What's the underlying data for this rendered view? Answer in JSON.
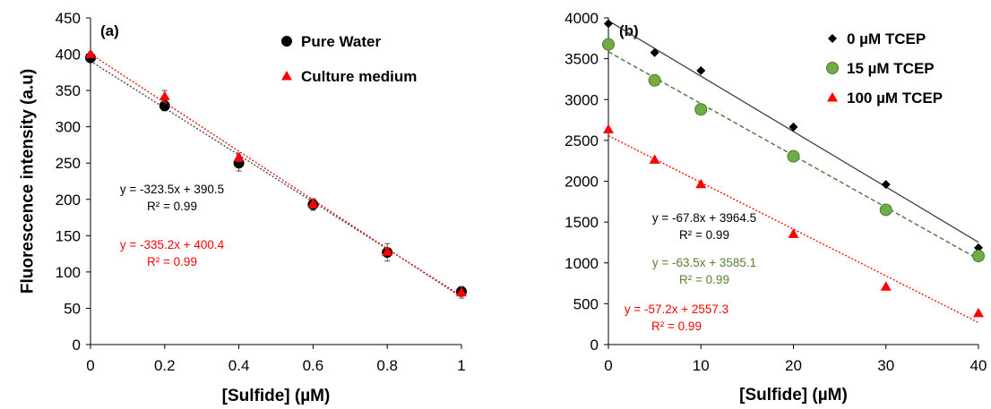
{
  "chart_data": [
    {
      "type": "scatter",
      "panel_label": "(a)",
      "xlabel": "[Sulfide] (µM)",
      "ylabel": "Fluorescence intensity (a.u)",
      "xlim": [
        0,
        1
      ],
      "ylim": [
        0,
        450
      ],
      "x_ticks": [
        "0",
        "0.2",
        "0.4",
        "0.6",
        "0.8",
        "1"
      ],
      "y_ticks": [
        "0",
        "50",
        "100",
        "150",
        "200",
        "250",
        "300",
        "350",
        "400",
        "450"
      ],
      "grid": false,
      "legend_position": "top-right",
      "series": [
        {
          "name": "Pure Water",
          "marker": "circle",
          "color": "#000000",
          "x": [
            0,
            0.2,
            0.4,
            0.6,
            0.8,
            1
          ],
          "y": [
            395,
            329,
            250,
            193,
            127,
            73
          ],
          "yerr": [
            5,
            7,
            11,
            8,
            12,
            6
          ],
          "fit": {
            "slope": -323.5,
            "intercept": 390.5,
            "style": "dotted",
            "color": "#404040"
          },
          "equation": "y = -323.5x + 390.5",
          "r2": "R² = 0.99"
        },
        {
          "name": "Culture medium",
          "marker": "triangle",
          "color": "#ff0000",
          "x": [
            0,
            0.2,
            0.4,
            0.6,
            0.8,
            1
          ],
          "y": [
            400,
            342,
            258,
            194,
            128,
            72
          ],
          "yerr": [
            3,
            8,
            6,
            6,
            5,
            8
          ],
          "fit": {
            "slope": -335.2,
            "intercept": 400.4,
            "style": "dotted",
            "color": "#ff0000"
          },
          "equation": "y = -335.2x + 400.4",
          "r2": "R² = 0.99"
        }
      ]
    },
    {
      "type": "scatter",
      "panel_label": "(b)",
      "xlabel": "[Sulfide] (µM)",
      "ylabel": "",
      "xlim": [
        0,
        40
      ],
      "ylim": [
        0,
        4000
      ],
      "x_ticks": [
        "0",
        "10",
        "20",
        "30",
        "40"
      ],
      "y_ticks": [
        "0",
        "500",
        "1000",
        "1500",
        "2000",
        "2500",
        "3000",
        "3500",
        "4000"
      ],
      "grid": false,
      "legend_position": "top-right",
      "series": [
        {
          "name": "0 µM TCEP",
          "marker": "diamond",
          "color": "#000000",
          "x": [
            0,
            5,
            10,
            20,
            30,
            40
          ],
          "y": [
            3930,
            3575,
            3355,
            2665,
            1960,
            1185
          ],
          "fit": {
            "slope": -67.8,
            "intercept": 3964.5,
            "style": "solid",
            "color": "#404040"
          },
          "equation": "y = -67.8x + 3964.5",
          "r2": "R² = 0.99"
        },
        {
          "name": "15 µM TCEP",
          "marker": "circle",
          "color": "#70ad47",
          "x": [
            0,
            5,
            10,
            20,
            30,
            40
          ],
          "y": [
            3675,
            3235,
            2880,
            2305,
            1650,
            1085
          ],
          "fit": {
            "slope": -63.5,
            "intercept": 3585.1,
            "style": "dashed",
            "color": "#3f6b2a"
          },
          "equation": "y = -63.5x + 3585.1",
          "r2": "R² = 0.99"
        },
        {
          "name": "100 µM TCEP",
          "marker": "triangle",
          "color": "#ff0000",
          "x": [
            0,
            5,
            10,
            20,
            30,
            40
          ],
          "y": [
            2635,
            2265,
            1965,
            1355,
            710,
            385
          ],
          "fit": {
            "slope": -57.2,
            "intercept": 2557.3,
            "style": "dotted",
            "color": "#ff0000"
          },
          "equation": "y = -57.2x + 2557.3",
          "r2": "R² = 0.99"
        }
      ]
    }
  ]
}
